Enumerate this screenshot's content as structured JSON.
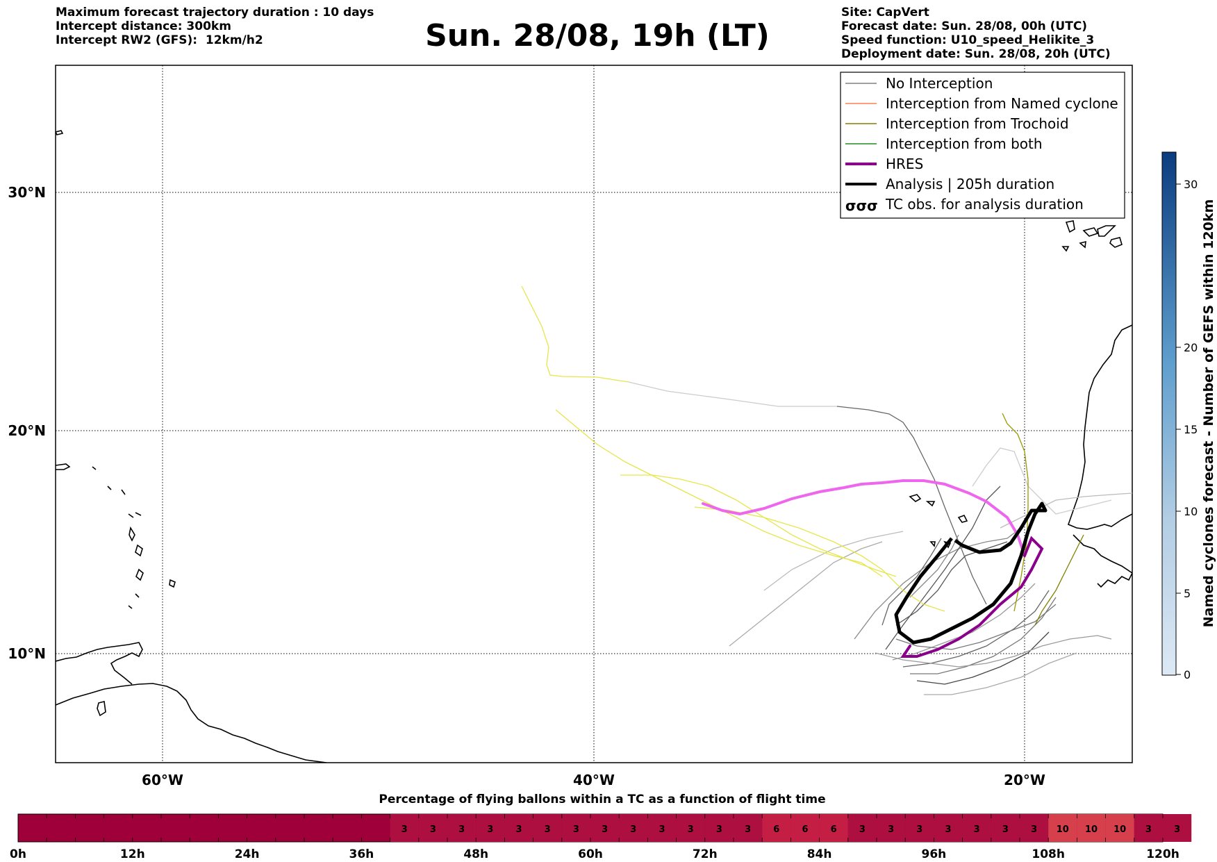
{
  "header": {
    "left_lines": [
      "Maximum forecast trajectory duration : 10 days",
      "Intercept distance: 300km",
      "Intercept RW2 (GFS):  12km/h2"
    ],
    "title": "Sun. 28/08, 19h (LT)",
    "right_lines": [
      "Site: CapVert",
      "Forecast date: Sun. 28/08, 00h (UTC)",
      "Speed function: U10_speed_Helikite_3",
      "Deployment date: Sun. 28/08, 20h (UTC)"
    ]
  },
  "map": {
    "lat_labels": [
      "30°N",
      "20°N",
      "10°N"
    ],
    "lon_labels": [
      "60°W",
      "40°W",
      "20°W"
    ]
  },
  "legend": {
    "items": [
      {
        "label": "No Interception",
        "color": "#808080",
        "style": "line-thin"
      },
      {
        "label": "Interception from Named cyclone",
        "color": "#ff7f50",
        "style": "line-thin"
      },
      {
        "label": "Interception from Trochoid",
        "color": "#808000",
        "style": "line-thin"
      },
      {
        "label": "Interception from both",
        "color": "#228b22",
        "style": "line-thin"
      },
      {
        "label": "HRES",
        "color": "#8b008b",
        "style": "line-thick"
      },
      {
        "label": "Analysis | 205h duration",
        "color": "#000000",
        "style": "line-thick"
      },
      {
        "label": "TC obs. for analysis duration",
        "color": "#000000",
        "style": "tc-symbol"
      }
    ],
    "tc_symbol": "σσσ"
  },
  "colorbar": {
    "label": "Named cyclones forecast - Number of GEFS within 120km",
    "ticks": [
      "30",
      "20",
      "15",
      "10",
      "5",
      "0"
    ]
  },
  "timebar": {
    "title": "Percentage of flying ballons within a TC as a function of flight time",
    "hour_labels": [
      "0h",
      "12h",
      "24h",
      "36h",
      "48h",
      "60h",
      "72h",
      "84h",
      "96h",
      "108h",
      "120h"
    ],
    "cells": [
      "3",
      "3",
      "3",
      "3",
      "3",
      "3",
      "3",
      "3",
      "3",
      "3",
      "3",
      "3",
      "3",
      "6",
      "6",
      "6",
      "3",
      "3",
      "3",
      "3",
      "3",
      "3",
      "3",
      "10",
      "10",
      "10",
      "3",
      "3"
    ]
  }
}
